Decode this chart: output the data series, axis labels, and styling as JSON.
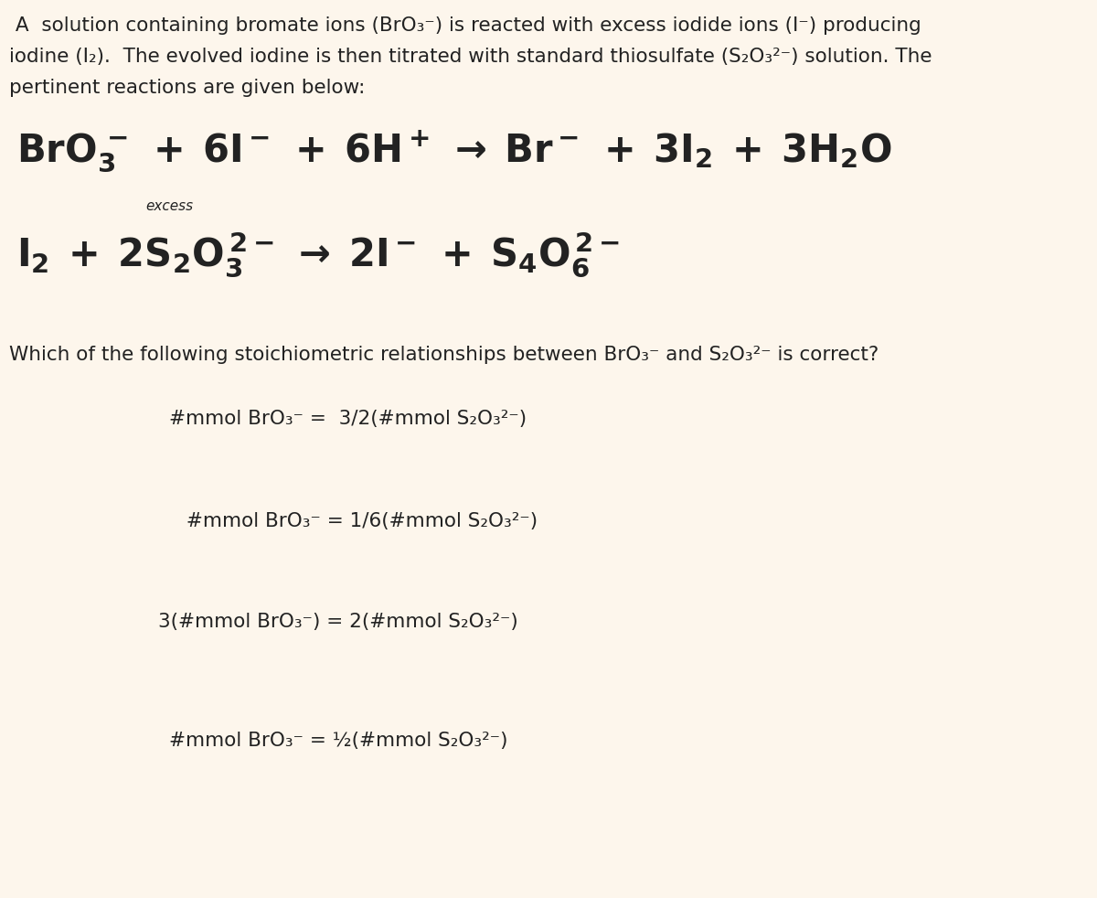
{
  "background_color": "#fdf6ec",
  "text_color": "#222222",
  "fig_width": 12.0,
  "fig_height": 9.82,
  "dpi": 100,
  "intro_line1": " A  solution containing bromate ions (BrO₃⁻) is reacted with excess iodide ions (I⁻) producing",
  "intro_line2": "iodine (I₂).  The evolved iodine is then titrated with standard thiosulfate (S₂O₃²⁻) solution. The",
  "intro_line3": "pertinent reactions are given below:",
  "question_text": "Which of the following stoichiometric relationships between BrO₃⁻ and S₂O₃²⁻ is correct?",
  "answer1": "#mmol BrO₃⁻ =  3/2(#mmol S₂O₃²⁻)",
  "answer2": " #mmol BrO₃⁻ = 1/6(#mmol S₂O₃²⁻)",
  "answer3": "3(#mmol BrO₃⁻) = 2(#mmol S₂O₃²⁻)",
  "answer4": "#mmol BrO₃⁻ = ½(#mmol S₂O₃²⁻)",
  "intro_fontsize": 15.5,
  "question_fontsize": 15.5,
  "answer_fontsize": 15.5,
  "reaction1_fontsize": 30,
  "reaction2_fontsize": 30,
  "excess_fontsize": 11,
  "excess_label": "excess"
}
